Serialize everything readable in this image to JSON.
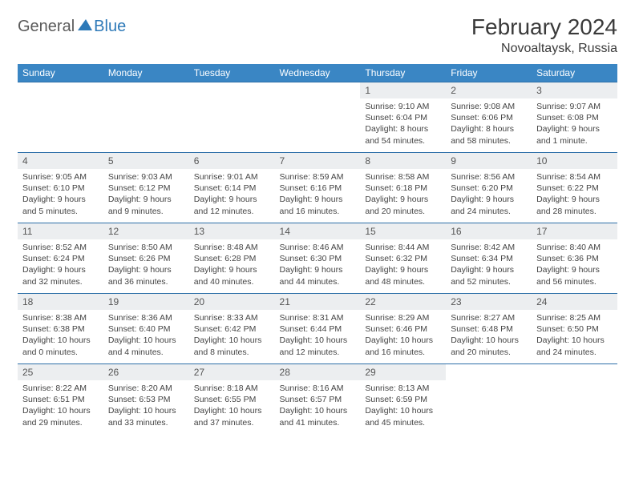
{
  "logo": {
    "text1": "General",
    "text2": "Blue"
  },
  "header": {
    "title": "February 2024",
    "location": "Novoaltaysk, Russia"
  },
  "colors": {
    "header_bar": "#3a86c4",
    "header_text": "#ffffff",
    "row_border": "#2d6fa8",
    "daynum_bg": "#eceef0",
    "body_text": "#444444",
    "logo_blue": "#2d79b8",
    "logo_gray": "#5a5a5a",
    "page_bg": "#ffffff"
  },
  "day_headers": [
    "Sunday",
    "Monday",
    "Tuesday",
    "Wednesday",
    "Thursday",
    "Friday",
    "Saturday"
  ],
  "weeks": [
    [
      null,
      null,
      null,
      null,
      {
        "n": "1",
        "sr": "Sunrise: 9:10 AM",
        "ss": "Sunset: 6:04 PM",
        "dl1": "Daylight: 8 hours",
        "dl2": "and 54 minutes."
      },
      {
        "n": "2",
        "sr": "Sunrise: 9:08 AM",
        "ss": "Sunset: 6:06 PM",
        "dl1": "Daylight: 8 hours",
        "dl2": "and 58 minutes."
      },
      {
        "n": "3",
        "sr": "Sunrise: 9:07 AM",
        "ss": "Sunset: 6:08 PM",
        "dl1": "Daylight: 9 hours",
        "dl2": "and 1 minute."
      }
    ],
    [
      {
        "n": "4",
        "sr": "Sunrise: 9:05 AM",
        "ss": "Sunset: 6:10 PM",
        "dl1": "Daylight: 9 hours",
        "dl2": "and 5 minutes."
      },
      {
        "n": "5",
        "sr": "Sunrise: 9:03 AM",
        "ss": "Sunset: 6:12 PM",
        "dl1": "Daylight: 9 hours",
        "dl2": "and 9 minutes."
      },
      {
        "n": "6",
        "sr": "Sunrise: 9:01 AM",
        "ss": "Sunset: 6:14 PM",
        "dl1": "Daylight: 9 hours",
        "dl2": "and 12 minutes."
      },
      {
        "n": "7",
        "sr": "Sunrise: 8:59 AM",
        "ss": "Sunset: 6:16 PM",
        "dl1": "Daylight: 9 hours",
        "dl2": "and 16 minutes."
      },
      {
        "n": "8",
        "sr": "Sunrise: 8:58 AM",
        "ss": "Sunset: 6:18 PM",
        "dl1": "Daylight: 9 hours",
        "dl2": "and 20 minutes."
      },
      {
        "n": "9",
        "sr": "Sunrise: 8:56 AM",
        "ss": "Sunset: 6:20 PM",
        "dl1": "Daylight: 9 hours",
        "dl2": "and 24 minutes."
      },
      {
        "n": "10",
        "sr": "Sunrise: 8:54 AM",
        "ss": "Sunset: 6:22 PM",
        "dl1": "Daylight: 9 hours",
        "dl2": "and 28 minutes."
      }
    ],
    [
      {
        "n": "11",
        "sr": "Sunrise: 8:52 AM",
        "ss": "Sunset: 6:24 PM",
        "dl1": "Daylight: 9 hours",
        "dl2": "and 32 minutes."
      },
      {
        "n": "12",
        "sr": "Sunrise: 8:50 AM",
        "ss": "Sunset: 6:26 PM",
        "dl1": "Daylight: 9 hours",
        "dl2": "and 36 minutes."
      },
      {
        "n": "13",
        "sr": "Sunrise: 8:48 AM",
        "ss": "Sunset: 6:28 PM",
        "dl1": "Daylight: 9 hours",
        "dl2": "and 40 minutes."
      },
      {
        "n": "14",
        "sr": "Sunrise: 8:46 AM",
        "ss": "Sunset: 6:30 PM",
        "dl1": "Daylight: 9 hours",
        "dl2": "and 44 minutes."
      },
      {
        "n": "15",
        "sr": "Sunrise: 8:44 AM",
        "ss": "Sunset: 6:32 PM",
        "dl1": "Daylight: 9 hours",
        "dl2": "and 48 minutes."
      },
      {
        "n": "16",
        "sr": "Sunrise: 8:42 AM",
        "ss": "Sunset: 6:34 PM",
        "dl1": "Daylight: 9 hours",
        "dl2": "and 52 minutes."
      },
      {
        "n": "17",
        "sr": "Sunrise: 8:40 AM",
        "ss": "Sunset: 6:36 PM",
        "dl1": "Daylight: 9 hours",
        "dl2": "and 56 minutes."
      }
    ],
    [
      {
        "n": "18",
        "sr": "Sunrise: 8:38 AM",
        "ss": "Sunset: 6:38 PM",
        "dl1": "Daylight: 10 hours",
        "dl2": "and 0 minutes."
      },
      {
        "n": "19",
        "sr": "Sunrise: 8:36 AM",
        "ss": "Sunset: 6:40 PM",
        "dl1": "Daylight: 10 hours",
        "dl2": "and 4 minutes."
      },
      {
        "n": "20",
        "sr": "Sunrise: 8:33 AM",
        "ss": "Sunset: 6:42 PM",
        "dl1": "Daylight: 10 hours",
        "dl2": "and 8 minutes."
      },
      {
        "n": "21",
        "sr": "Sunrise: 8:31 AM",
        "ss": "Sunset: 6:44 PM",
        "dl1": "Daylight: 10 hours",
        "dl2": "and 12 minutes."
      },
      {
        "n": "22",
        "sr": "Sunrise: 8:29 AM",
        "ss": "Sunset: 6:46 PM",
        "dl1": "Daylight: 10 hours",
        "dl2": "and 16 minutes."
      },
      {
        "n": "23",
        "sr": "Sunrise: 8:27 AM",
        "ss": "Sunset: 6:48 PM",
        "dl1": "Daylight: 10 hours",
        "dl2": "and 20 minutes."
      },
      {
        "n": "24",
        "sr": "Sunrise: 8:25 AM",
        "ss": "Sunset: 6:50 PM",
        "dl1": "Daylight: 10 hours",
        "dl2": "and 24 minutes."
      }
    ],
    [
      {
        "n": "25",
        "sr": "Sunrise: 8:22 AM",
        "ss": "Sunset: 6:51 PM",
        "dl1": "Daylight: 10 hours",
        "dl2": "and 29 minutes."
      },
      {
        "n": "26",
        "sr": "Sunrise: 8:20 AM",
        "ss": "Sunset: 6:53 PM",
        "dl1": "Daylight: 10 hours",
        "dl2": "and 33 minutes."
      },
      {
        "n": "27",
        "sr": "Sunrise: 8:18 AM",
        "ss": "Sunset: 6:55 PM",
        "dl1": "Daylight: 10 hours",
        "dl2": "and 37 minutes."
      },
      {
        "n": "28",
        "sr": "Sunrise: 8:16 AM",
        "ss": "Sunset: 6:57 PM",
        "dl1": "Daylight: 10 hours",
        "dl2": "and 41 minutes."
      },
      {
        "n": "29",
        "sr": "Sunrise: 8:13 AM",
        "ss": "Sunset: 6:59 PM",
        "dl1": "Daylight: 10 hours",
        "dl2": "and 45 minutes."
      },
      null,
      null
    ]
  ]
}
